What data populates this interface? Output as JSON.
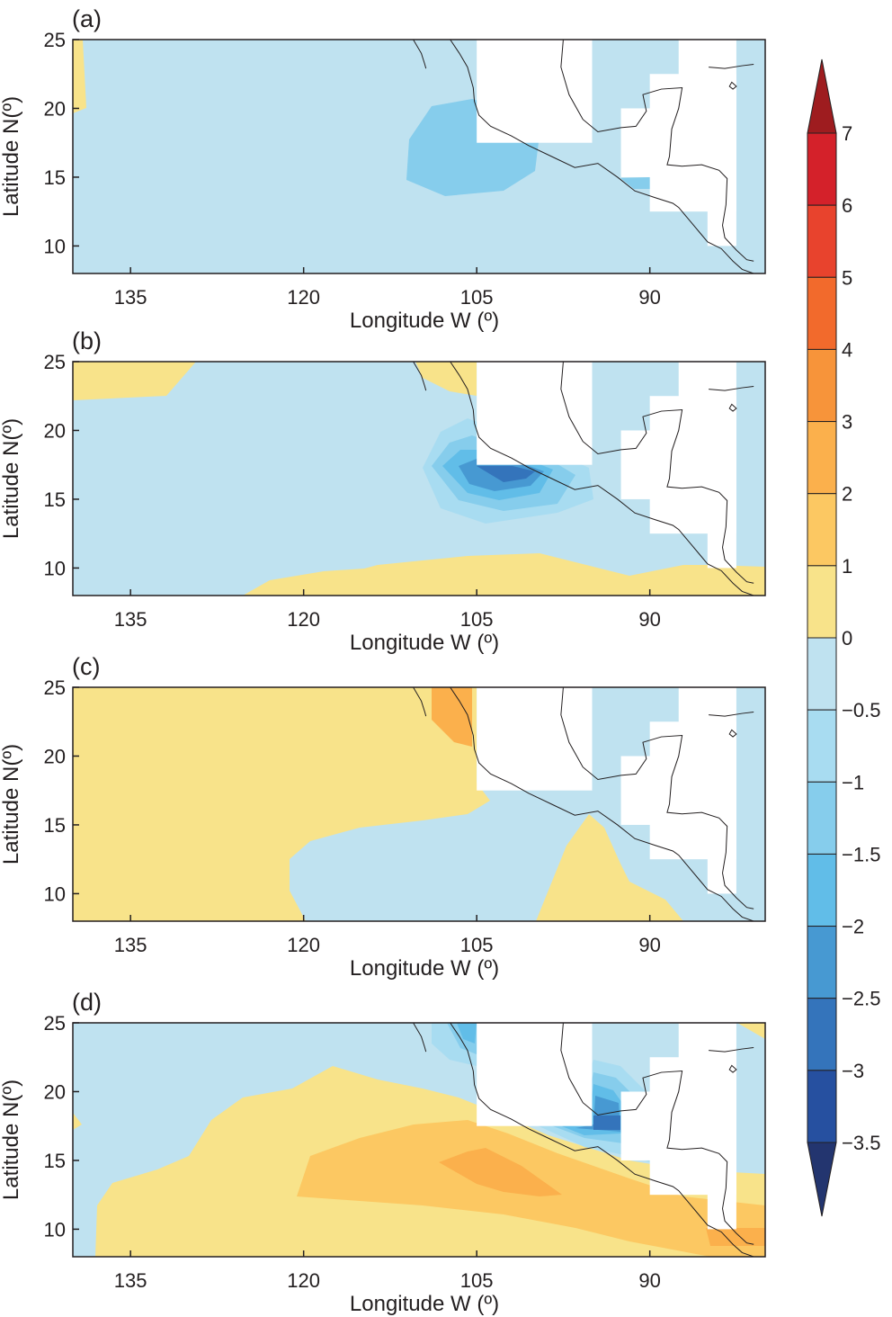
{
  "chart_data": {
    "type": "heatmap",
    "panels": [
      {
        "label": "(a)",
        "ylabel": "Latitude N(º)",
        "xlabel": "Longitude W (º)"
      },
      {
        "label": "(b)",
        "ylabel": "Latitude N(º)",
        "xlabel": "Longitude W (º)"
      },
      {
        "label": "(c)",
        "ylabel": "Latitude N(º)",
        "xlabel": "Longitude W (º)"
      },
      {
        "label": "(d)",
        "ylabel": "Latitude N(º)",
        "xlabel": "Longitude W (º)"
      }
    ],
    "x_ticks": [
      "135",
      "120",
      "105",
      "90"
    ],
    "x_tick_values": [
      135,
      120,
      105,
      90
    ],
    "y_ticks": [
      "25",
      "20",
      "15",
      "10"
    ],
    "y_tick_values": [
      25,
      20,
      15,
      10
    ],
    "xlim": [
      140,
      80
    ],
    "ylim": [
      8,
      25
    ],
    "colorbar": {
      "ticks": [
        "7",
        "6",
        "5",
        "4",
        "3",
        "2",
        "1",
        "0",
        "−0.5",
        "−1",
        "−1.5",
        "−2",
        "−2.5",
        "−3",
        "−3.5"
      ],
      "levels": [
        7,
        6,
        5,
        4,
        3,
        2,
        1,
        0,
        -0.5,
        -1,
        -1.5,
        -2,
        -2.5,
        -3,
        -3.5
      ],
      "colors": [
        "#9e1c1f",
        "#d4212a",
        "#e8432d",
        "#f26a2c",
        "#f7943a",
        "#fbb04c",
        "#fcc862",
        "#f8e38a",
        "#bfe2f0",
        "#a8dcf1",
        "#86cdec",
        "#61bde8",
        "#4799d2",
        "#3474bb",
        "#2650a0",
        "#23356f"
      ],
      "extend": "both"
    }
  }
}
